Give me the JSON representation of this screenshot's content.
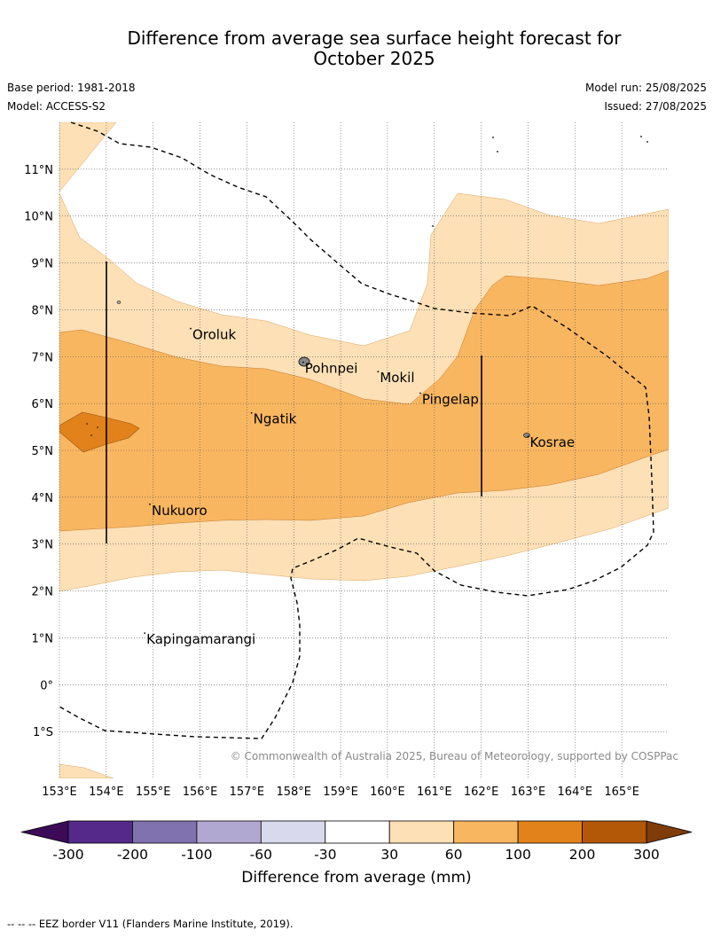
{
  "title_line1": "Difference from average sea surface height forecast for",
  "title_line2": "October 2025",
  "meta": {
    "base_period": "Base period: 1981-2018",
    "model": "Model: ACCESS-S2",
    "model_run": "Model run: 25/08/2025",
    "issued": "Issued: 27/08/2025"
  },
  "map": {
    "lon_range": [
      153,
      166
    ],
    "lat_range": [
      -2,
      12
    ],
    "lon_ticks": [
      {
        "v": 153,
        "label": "153°E"
      },
      {
        "v": 154,
        "label": "154°E"
      },
      {
        "v": 155,
        "label": "155°E"
      },
      {
        "v": 156,
        "label": "156°E"
      },
      {
        "v": 157,
        "label": "157°E"
      },
      {
        "v": 158,
        "label": "158°E"
      },
      {
        "v": 159,
        "label": "159°E"
      },
      {
        "v": 160,
        "label": "160°E"
      },
      {
        "v": 161,
        "label": "161°E"
      },
      {
        "v": 162,
        "label": "162°E"
      },
      {
        "v": 163,
        "label": "163°E"
      },
      {
        "v": 164,
        "label": "164°E"
      },
      {
        "v": 165,
        "label": "165°E"
      }
    ],
    "lat_ticks": [
      {
        "v": 11,
        "label": "11°N"
      },
      {
        "v": 10,
        "label": "10°N"
      },
      {
        "v": 9,
        "label": "9°N"
      },
      {
        "v": 8,
        "label": "8°N"
      },
      {
        "v": 7,
        "label": "7°N"
      },
      {
        "v": 6,
        "label": "6°N"
      },
      {
        "v": 5,
        "label": "5°N"
      },
      {
        "v": 4,
        "label": "4°N"
      },
      {
        "v": 3,
        "label": "3°N"
      },
      {
        "v": 2,
        "label": "2°N"
      },
      {
        "v": 1,
        "label": "1°N"
      },
      {
        "v": 0,
        "label": "0°"
      },
      {
        "v": -1,
        "label": "1°S"
      }
    ],
    "places": [
      {
        "name": "Oroluk",
        "lon": 155.8,
        "lat": 7.6
      },
      {
        "name": "Pohnpei",
        "lon": 158.2,
        "lat": 6.88
      },
      {
        "name": "Mokil",
        "lon": 159.8,
        "lat": 6.68
      },
      {
        "name": "Pingelap",
        "lon": 160.7,
        "lat": 6.22
      },
      {
        "name": "Ngatik",
        "lon": 157.1,
        "lat": 5.8
      },
      {
        "name": "Kosrae",
        "lon": 163.0,
        "lat": 5.3
      },
      {
        "name": "Nukuoro",
        "lon": 154.93,
        "lat": 3.85
      },
      {
        "name": "Kapingamarangi",
        "lon": 154.82,
        "lat": 1.1
      }
    ],
    "copyright": "© Commonwealth of Australia 2025, Bureau of Meteorology, supported by COSPPac"
  },
  "colorbar": {
    "label": "Difference from average (mm)",
    "ticks": [
      "-300",
      "-200",
      "-100",
      "-60",
      "-30",
      "30",
      "60",
      "100",
      "200",
      "300"
    ],
    "colors": [
      "#3d0a57",
      "#55298a",
      "#8072af",
      "#b1a8d1",
      "#d9d9ee",
      "#ffffff",
      "#fee0b6",
      "#f9b660",
      "#e2821a",
      "#b35806",
      "#7f3b08"
    ]
  },
  "footnote": "--  --  -- EEZ border V11 (Flanders Marine Institute, 2019)."
}
